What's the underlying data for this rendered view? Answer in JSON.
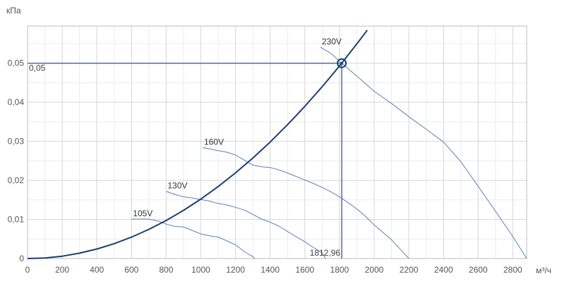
{
  "chart_data": {
    "type": "line",
    "xlabel": "м³/ч",
    "ylabel": "кПа",
    "xlim": [
      0,
      2880
    ],
    "ylim": [
      0,
      0.0595
    ],
    "grid": true,
    "x_ticks": [
      0,
      200,
      400,
      600,
      800,
      1000,
      1200,
      1400,
      1600,
      1800,
      2000,
      2200,
      2400,
      2600,
      2800
    ],
    "x_tick_labels": [
      "0",
      "200",
      "400",
      "600",
      "800",
      "1000",
      "1200",
      "1400",
      "1600",
      "1800",
      "2000",
      "2200",
      "2400",
      "2600",
      "2800"
    ],
    "y_ticks": [
      0,
      0.01,
      0.02,
      0.03,
      0.04,
      0.05
    ],
    "y_tick_labels": [
      "0",
      "0,01",
      "0,02",
      "0,03",
      "0,04",
      "0,05"
    ],
    "x_minor_step": 100,
    "y_minor_step": 0.005,
    "system_curve": {
      "x": [
        0,
        100,
        200,
        300,
        400,
        500,
        600,
        700,
        800,
        900,
        1000,
        1100,
        1200,
        1300,
        1400,
        1500,
        1600,
        1700,
        1800,
        1900,
        1960
      ],
      "y": [
        0,
        0.00015,
        0.0006,
        0.00137,
        0.00243,
        0.0038,
        0.00548,
        0.00746,
        0.00974,
        0.01233,
        0.01522,
        0.01842,
        0.02192,
        0.02572,
        0.02983,
        0.03424,
        0.03896,
        0.04398,
        0.0493,
        0.05493,
        0.05845
      ],
      "color": "#1b3f72"
    },
    "series": [
      {
        "name": "105V",
        "x": [
          600,
          700,
          760,
          800,
          850,
          900,
          950,
          1000,
          1050,
          1100,
          1150,
          1200,
          1250,
          1280,
          1300,
          1310
        ],
        "y": [
          0.0101,
          0.0101,
          0.0095,
          0.0088,
          0.0082,
          0.0081,
          0.0072,
          0.0063,
          0.0058,
          0.0055,
          0.0045,
          0.0035,
          0.0018,
          0.001,
          0.0005,
          0
        ]
      },
      {
        "name": "130V",
        "x": [
          800,
          850,
          900,
          950,
          1000,
          1050,
          1100,
          1150,
          1200,
          1250,
          1300,
          1350,
          1400,
          1450,
          1500,
          1550,
          1600,
          1650,
          1700,
          1720
        ],
        "y": [
          0.0172,
          0.0164,
          0.0158,
          0.0155,
          0.0151,
          0.0147,
          0.0141,
          0.0137,
          0.0131,
          0.0124,
          0.0113,
          0.0101,
          0.0093,
          0.0083,
          0.0069,
          0.0056,
          0.0043,
          0.0028,
          0.0014,
          0
        ]
      },
      {
        "name": "160V",
        "x": [
          1010,
          1050,
          1100,
          1150,
          1200,
          1250,
          1300,
          1350,
          1400,
          1450,
          1500,
          1550,
          1600,
          1650,
          1700,
          1750,
          1800,
          1850,
          1900,
          1950,
          2000,
          2050,
          2100,
          2150,
          2200
        ],
        "y": [
          0.0284,
          0.0281,
          0.0276,
          0.0272,
          0.0265,
          0.0252,
          0.0239,
          0.0235,
          0.0233,
          0.0227,
          0.0219,
          0.021,
          0.0201,
          0.0192,
          0.0182,
          0.0171,
          0.0158,
          0.0143,
          0.0127,
          0.0108,
          0.0086,
          0.0067,
          0.0048,
          0.0024,
          0
        ]
      },
      {
        "name": "230V",
        "x": [
          1690,
          1750,
          1812.96,
          1900,
          2000,
          2100,
          2200,
          2300,
          2400,
          2500,
          2600,
          2700,
          2800,
          2880
        ],
        "y": [
          0.0541,
          0.0525,
          0.05,
          0.0467,
          0.0428,
          0.0397,
          0.0363,
          0.0331,
          0.0298,
          0.0248,
          0.0185,
          0.0121,
          0.0056,
          0
        ]
      }
    ],
    "operating_point": {
      "x": 1812.96,
      "y": 0.05,
      "x_label": "1812,96",
      "y_label": "0,05"
    },
    "curve_color": "#5a82b4",
    "guide_color": "#4a6fa5",
    "grid_color": "#d8d8d8"
  }
}
